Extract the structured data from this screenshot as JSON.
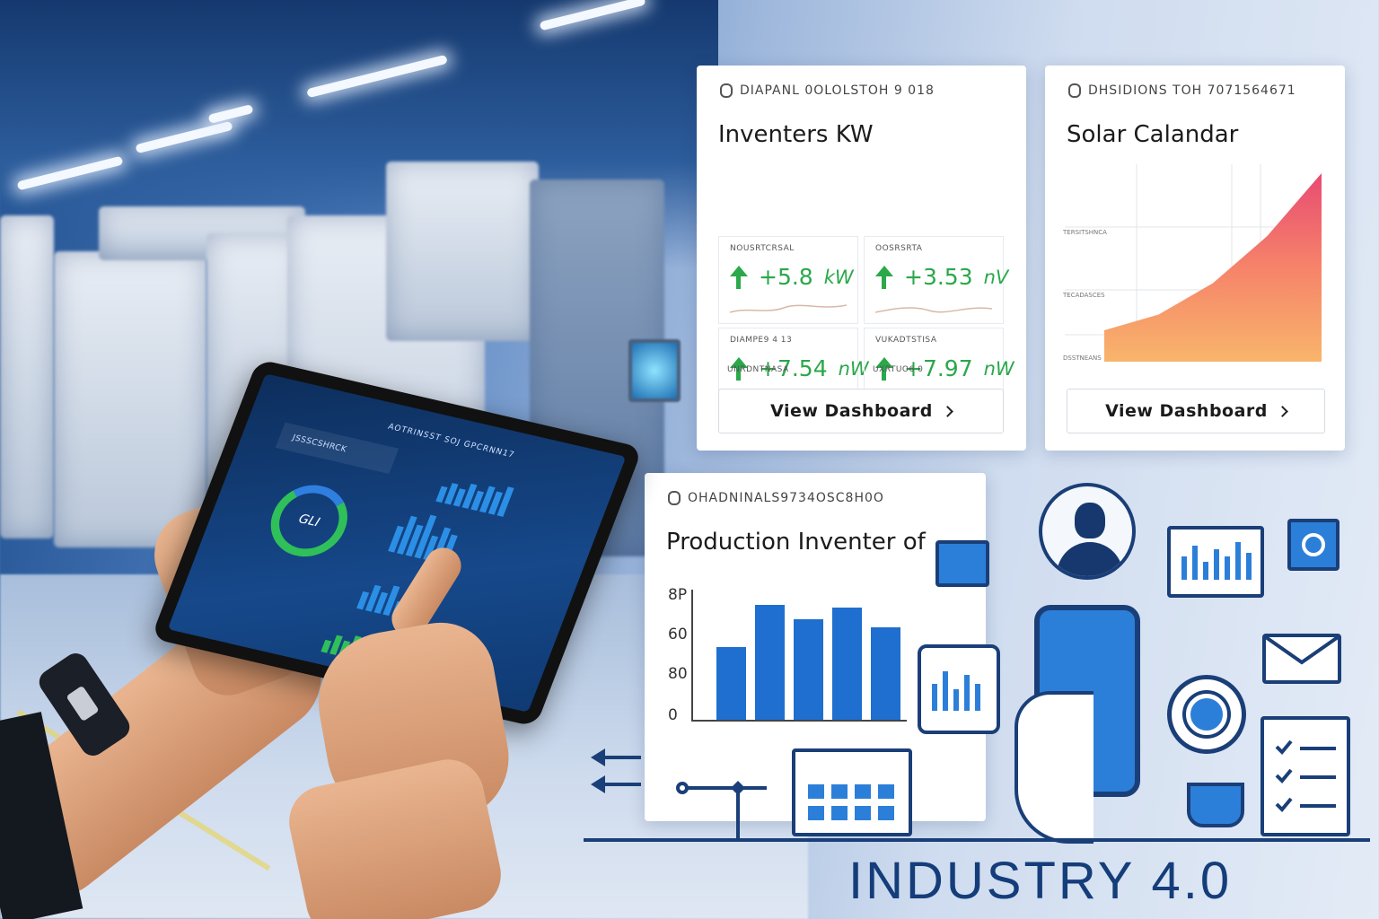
{
  "cards": {
    "inverters": {
      "code": "DIAPANL 0OLOLSTOH 9 018",
      "title": "Inventers KW",
      "metrics": [
        {
          "label": "NOUSRTCRSAL",
          "value": "+5.8",
          "unit": "kW"
        },
        {
          "label": "OOSRSRTA",
          "value": "+3.53",
          "unit": "nV"
        },
        {
          "label": "DIAMPE9 4 13",
          "value": "+7.54",
          "unit": "nW"
        },
        {
          "label": "VUKADTSTISA",
          "value": "+7.97",
          "unit": "nW"
        }
      ],
      "foot_labels": [
        "UNRDNTNASA",
        "UXRTUO6 0"
      ],
      "button": "View Dashboard"
    },
    "solar": {
      "code": "DHSIDIONS TOH 7071564671",
      "title": "Solar Calandar",
      "ticks": [
        "TERSITSHNCA",
        "TECADASCES",
        "DSSTNEANS"
      ],
      "chart_data": {
        "type": "area",
        "title": "",
        "series": [
          {
            "name": "",
            "values": [
              2,
              3,
              5,
              8,
              12
            ]
          }
        ],
        "colors": [
          "#e84b72",
          "#f6836a",
          "#f8b56b"
        ]
      },
      "button": "View Dashboard"
    },
    "production": {
      "code": "OHADNINALS9734OSC8H0O",
      "title": "Production Inventer of",
      "chart_data": {
        "type": "bar",
        "title": "",
        "yticks": [
          "8P",
          "60",
          "80",
          "0"
        ],
        "categories": [
          "",
          "",
          "",
          "",
          ""
        ],
        "values": [
          56,
          88,
          77,
          86,
          71
        ],
        "ylim": [
          0,
          100
        ],
        "bar_color": "#1f6fd0"
      }
    }
  },
  "tablet": {
    "title": "AOTRINSST SOJ GPCRNN17",
    "subtitle": "JSSSCSHRCK",
    "donut_label": "GLI"
  },
  "brand": "INDUSTRY 4.0"
}
